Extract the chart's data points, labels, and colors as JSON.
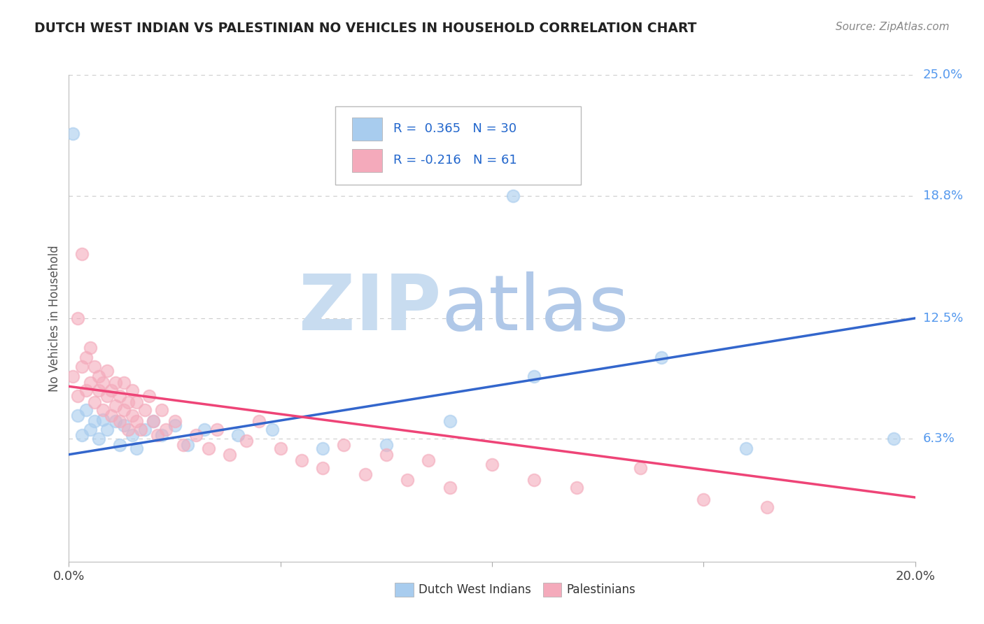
{
  "title": "DUTCH WEST INDIAN VS PALESTINIAN NO VEHICLES IN HOUSEHOLD CORRELATION CHART",
  "source": "Source: ZipAtlas.com",
  "ylabel": "No Vehicles in Household",
  "xlim": [
    0.0,
    0.2
  ],
  "ylim": [
    0.0,
    0.25
  ],
  "ytick_labels_right": [
    "6.3%",
    "12.5%",
    "18.8%",
    "25.0%"
  ],
  "ytick_vals_right": [
    0.063,
    0.125,
    0.188,
    0.25
  ],
  "blue_R": 0.365,
  "blue_N": 30,
  "pink_R": -0.216,
  "pink_N": 61,
  "blue_color": "#A8CCEE",
  "pink_color": "#F4AABB",
  "blue_line_color": "#3366CC",
  "pink_line_color": "#EE4477",
  "legend_label_blue": "Dutch West Indians",
  "legend_label_pink": "Palestinians",
  "background_color": "#ffffff",
  "grid_color": "#cccccc",
  "blue_line_x0": 0.0,
  "blue_line_y0": 0.055,
  "blue_line_x1": 0.2,
  "blue_line_y1": 0.125,
  "pink_line_x0": 0.0,
  "pink_line_y0": 0.09,
  "pink_line_x1": 0.2,
  "pink_line_y1": 0.033,
  "blue_dots_x": [
    0.001,
    0.002,
    0.003,
    0.004,
    0.005,
    0.006,
    0.007,
    0.008,
    0.009,
    0.011,
    0.012,
    0.013,
    0.015,
    0.016,
    0.018,
    0.02,
    0.022,
    0.025,
    0.028,
    0.032,
    0.04,
    0.048,
    0.06,
    0.075,
    0.09,
    0.105,
    0.11,
    0.14,
    0.16,
    0.195
  ],
  "blue_dots_y": [
    0.22,
    0.075,
    0.065,
    0.078,
    0.068,
    0.072,
    0.063,
    0.073,
    0.068,
    0.072,
    0.06,
    0.07,
    0.065,
    0.058,
    0.068,
    0.072,
    0.065,
    0.07,
    0.06,
    0.068,
    0.065,
    0.068,
    0.058,
    0.06,
    0.072,
    0.188,
    0.095,
    0.105,
    0.058,
    0.063
  ],
  "pink_dots_x": [
    0.001,
    0.002,
    0.002,
    0.003,
    0.003,
    0.004,
    0.004,
    0.005,
    0.005,
    0.006,
    0.006,
    0.007,
    0.007,
    0.008,
    0.008,
    0.009,
    0.009,
    0.01,
    0.01,
    0.011,
    0.011,
    0.012,
    0.012,
    0.013,
    0.013,
    0.014,
    0.014,
    0.015,
    0.015,
    0.016,
    0.016,
    0.017,
    0.018,
    0.019,
    0.02,
    0.021,
    0.022,
    0.023,
    0.025,
    0.027,
    0.03,
    0.033,
    0.035,
    0.038,
    0.042,
    0.045,
    0.05,
    0.055,
    0.06,
    0.065,
    0.07,
    0.075,
    0.08,
    0.085,
    0.09,
    0.1,
    0.11,
    0.12,
    0.135,
    0.15,
    0.165
  ],
  "pink_dots_y": [
    0.095,
    0.085,
    0.125,
    0.1,
    0.158,
    0.088,
    0.105,
    0.092,
    0.11,
    0.082,
    0.1,
    0.088,
    0.095,
    0.078,
    0.092,
    0.085,
    0.098,
    0.075,
    0.088,
    0.08,
    0.092,
    0.072,
    0.085,
    0.078,
    0.092,
    0.068,
    0.082,
    0.075,
    0.088,
    0.072,
    0.082,
    0.068,
    0.078,
    0.085,
    0.072,
    0.065,
    0.078,
    0.068,
    0.072,
    0.06,
    0.065,
    0.058,
    0.068,
    0.055,
    0.062,
    0.072,
    0.058,
    0.052,
    0.048,
    0.06,
    0.045,
    0.055,
    0.042,
    0.052,
    0.038,
    0.05,
    0.042,
    0.038,
    0.048,
    0.032,
    0.028
  ],
  "watermark_zip_color": "#C8DCF0",
  "watermark_atlas_color": "#B0C8E8"
}
